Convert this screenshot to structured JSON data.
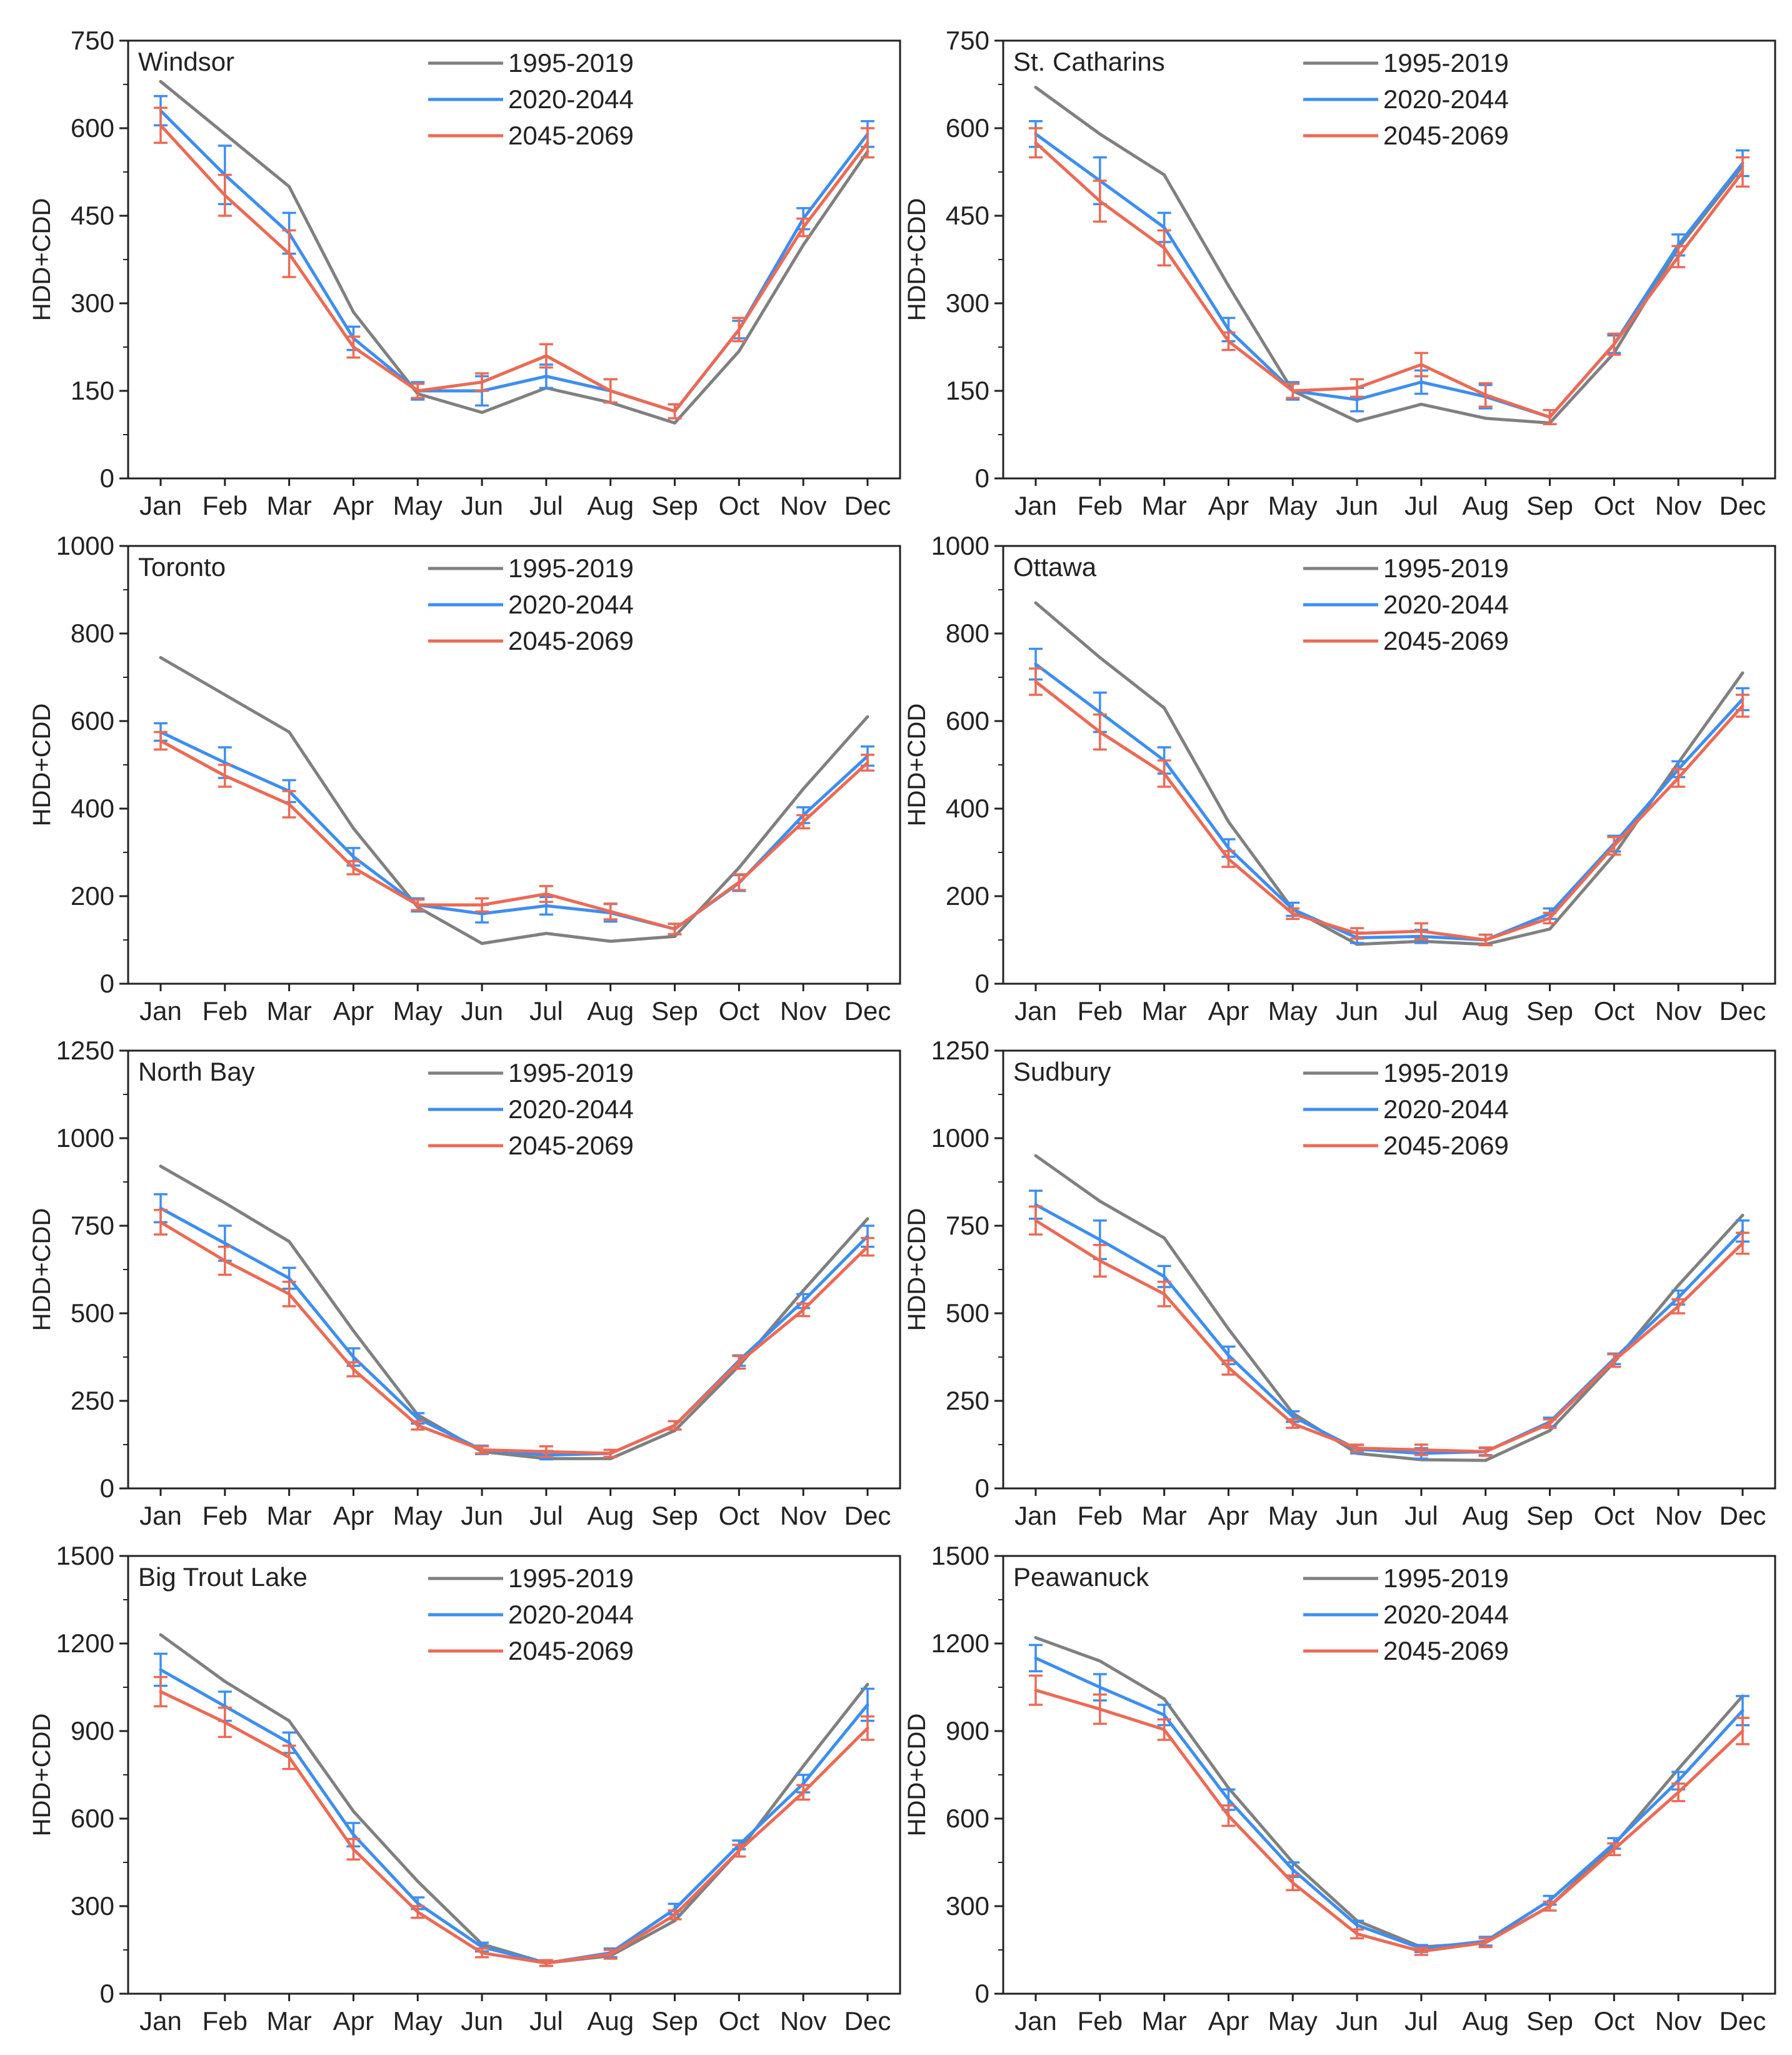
{
  "colors": {
    "series_1995_2019": "#808080",
    "series_2020_2044": "#3d8ef0",
    "series_2045_2069": "#ec6a55",
    "frame": "#222222"
  },
  "chart_data": [
    {
      "type": "line",
      "title": "Windsor",
      "ylabel": "HDD+CDD",
      "x": [
        "Jan",
        "Feb",
        "Mar",
        "Apr",
        "May",
        "Jun",
        "Jul",
        "Aug",
        "Sep",
        "Oct",
        "Nov",
        "Dec"
      ],
      "yticks": [
        0,
        150,
        300,
        450,
        600,
        750
      ],
      "ylim": [
        0,
        750
      ],
      "legend": "top-center",
      "series": [
        {
          "name": "1995-2019",
          "values": [
            680,
            590,
            500,
            285,
            145,
            113,
            155,
            130,
            95,
            218,
            400,
            560
          ]
        },
        {
          "name": "2020-2044",
          "values": [
            630,
            520,
            420,
            240,
            150,
            150,
            175,
            150,
            115,
            255,
            445,
            590
          ],
          "err": [
            25,
            50,
            35,
            20,
            15,
            25,
            20,
            20,
            12,
            15,
            18,
            22
          ]
        },
        {
          "name": "2045-2069",
          "values": [
            605,
            485,
            385,
            225,
            150,
            165,
            210,
            150,
            115,
            255,
            430,
            575
          ],
          "err": [
            30,
            35,
            40,
            18,
            12,
            15,
            20,
            20,
            12,
            20,
            15,
            25
          ]
        }
      ]
    },
    {
      "type": "line",
      "title": "St. Catharins",
      "ylabel": "HDD+CDD",
      "x": [
        "Jan",
        "Feb",
        "Mar",
        "Apr",
        "May",
        "Jun",
        "Jul",
        "Aug",
        "Sep",
        "Oct",
        "Nov",
        "Dec"
      ],
      "yticks": [
        0,
        150,
        300,
        450,
        600,
        750
      ],
      "ylim": [
        0,
        750
      ],
      "legend": "top-center",
      "series": [
        {
          "name": "1995-2019",
          "values": [
            670,
            590,
            520,
            330,
            150,
            98,
            127,
            103,
            95,
            215,
            395,
            535
          ]
        },
        {
          "name": "2020-2044",
          "values": [
            590,
            510,
            430,
            255,
            150,
            135,
            165,
            140,
            105,
            230,
            400,
            540
          ],
          "err": [
            22,
            40,
            25,
            20,
            15,
            20,
            20,
            20,
            12,
            15,
            18,
            22
          ]
        },
        {
          "name": "2045-2069",
          "values": [
            575,
            475,
            395,
            235,
            150,
            155,
            195,
            143,
            105,
            230,
            380,
            525
          ],
          "err": [
            25,
            35,
            30,
            15,
            12,
            15,
            20,
            20,
            12,
            18,
            18,
            25
          ]
        }
      ]
    },
    {
      "type": "line",
      "title": "Toronto",
      "ylabel": "HDD+CDD",
      "x": [
        "Jan",
        "Feb",
        "Mar",
        "Apr",
        "May",
        "Jun",
        "Jul",
        "Aug",
        "Sep",
        "Oct",
        "Nov",
        "Dec"
      ],
      "yticks": [
        0,
        200,
        400,
        600,
        800,
        1000
      ],
      "ylim": [
        0,
        1000
      ],
      "legend": "top-center",
      "series": [
        {
          "name": "1995-2019",
          "values": [
            745,
            660,
            575,
            355,
            175,
            92,
            115,
            97,
            108,
            265,
            445,
            610
          ]
        },
        {
          "name": "2020-2044",
          "values": [
            575,
            505,
            440,
            290,
            180,
            160,
            178,
            162,
            125,
            230,
            385,
            520
          ],
          "err": [
            20,
            35,
            25,
            20,
            15,
            20,
            20,
            20,
            12,
            18,
            18,
            22
          ]
        },
        {
          "name": "2045-2069",
          "values": [
            555,
            475,
            410,
            265,
            180,
            180,
            205,
            165,
            125,
            232,
            370,
            505
          ],
          "err": [
            20,
            25,
            30,
            15,
            12,
            15,
            18,
            18,
            12,
            18,
            15,
            18
          ]
        }
      ]
    },
    {
      "type": "line",
      "title": "Ottawa",
      "ylabel": "HDD+CDD",
      "x": [
        "Jan",
        "Feb",
        "Mar",
        "Apr",
        "May",
        "Jun",
        "Jul",
        "Aug",
        "Sep",
        "Oct",
        "Nov",
        "Dec"
      ],
      "yticks": [
        0,
        200,
        400,
        600,
        800,
        1000
      ],
      "ylim": [
        0,
        1000
      ],
      "legend": "top-center",
      "series": [
        {
          "name": "1995-2019",
          "values": [
            870,
            745,
            630,
            370,
            170,
            90,
            97,
            90,
            125,
            295,
            505,
            710
          ]
        },
        {
          "name": "2020-2044",
          "values": [
            730,
            620,
            510,
            310,
            170,
            105,
            108,
            100,
            160,
            320,
            490,
            650
          ],
          "err": [
            35,
            45,
            30,
            20,
            15,
            12,
            15,
            12,
            12,
            18,
            18,
            25
          ]
        },
        {
          "name": "2045-2069",
          "values": [
            690,
            575,
            480,
            285,
            160,
            115,
            120,
            100,
            150,
            315,
            470,
            635
          ],
          "err": [
            30,
            40,
            30,
            18,
            12,
            12,
            18,
            12,
            12,
            20,
            20,
            25
          ]
        }
      ]
    },
    {
      "type": "line",
      "title": "North Bay",
      "ylabel": "HDD+CDD",
      "x": [
        "Jan",
        "Feb",
        "Mar",
        "Apr",
        "May",
        "Jun",
        "Jul",
        "Aug",
        "Sep",
        "Oct",
        "Nov",
        "Dec"
      ],
      "yticks": [
        0,
        250,
        500,
        750,
        1000,
        1250
      ],
      "ylim": [
        0,
        1250
      ],
      "legend": "top-center",
      "series": [
        {
          "name": "1995-2019",
          "values": [
            920,
            815,
            705,
            450,
            210,
            105,
            85,
            85,
            165,
            350,
            565,
            770
          ]
        },
        {
          "name": "2020-2044",
          "values": [
            800,
            700,
            600,
            375,
            200,
            110,
            95,
            100,
            180,
            365,
            535,
            720
          ],
          "err": [
            40,
            50,
            30,
            25,
            15,
            12,
            12,
            10,
            12,
            15,
            20,
            30
          ]
        },
        {
          "name": "2045-2069",
          "values": [
            760,
            650,
            555,
            340,
            180,
            110,
            105,
            100,
            180,
            360,
            510,
            690
          ],
          "err": [
            35,
            40,
            35,
            20,
            12,
            10,
            15,
            10,
            12,
            18,
            18,
            25
          ]
        }
      ]
    },
    {
      "type": "line",
      "title": "Sudbury",
      "ylabel": "HDD+CDD",
      "x": [
        "Jan",
        "Feb",
        "Mar",
        "Apr",
        "May",
        "Jun",
        "Jul",
        "Aug",
        "Sep",
        "Oct",
        "Nov",
        "Dec"
      ],
      "yticks": [
        0,
        250,
        500,
        750,
        1000,
        1250
      ],
      "ylim": [
        0,
        1250
      ],
      "legend": "top-center",
      "series": [
        {
          "name": "1995-2019",
          "values": [
            950,
            820,
            715,
            455,
            215,
            100,
            82,
            80,
            165,
            360,
            580,
            780
          ]
        },
        {
          "name": "2020-2044",
          "values": [
            810,
            710,
            605,
            380,
            205,
            112,
            100,
            105,
            190,
            370,
            545,
            735
          ],
          "err": [
            40,
            55,
            30,
            25,
            15,
            12,
            15,
            10,
            12,
            15,
            20,
            30
          ]
        },
        {
          "name": "2045-2069",
          "values": [
            765,
            650,
            555,
            345,
            185,
            115,
            110,
            105,
            185,
            365,
            520,
            700
          ],
          "err": [
            40,
            45,
            35,
            20,
            12,
            10,
            15,
            12,
            12,
            18,
            20,
            30
          ]
        }
      ]
    },
    {
      "type": "line",
      "title": "Big Trout Lake",
      "ylabel": "HDD+CDD",
      "x": [
        "Jan",
        "Feb",
        "Mar",
        "Apr",
        "May",
        "Jun",
        "Jul",
        "Aug",
        "Sep",
        "Oct",
        "Nov",
        "Dec"
      ],
      "yticks": [
        0,
        300,
        600,
        900,
        1200,
        1500
      ],
      "ylim": [
        0,
        1500
      ],
      "legend": "top-center",
      "series": [
        {
          "name": "1995-2019",
          "values": [
            1230,
            1070,
            935,
            625,
            385,
            170,
            105,
            130,
            250,
            490,
            780,
            1060
          ]
        },
        {
          "name": "2020-2044",
          "values": [
            1110,
            985,
            860,
            545,
            310,
            160,
            105,
            140,
            290,
            510,
            720,
            990
          ],
          "err": [
            55,
            50,
            35,
            40,
            20,
            15,
            10,
            15,
            18,
            15,
            30,
            55
          ]
        },
        {
          "name": "2045-2069",
          "values": [
            1035,
            930,
            810,
            495,
            280,
            140,
            105,
            135,
            270,
            490,
            690,
            910
          ],
          "err": [
            50,
            50,
            40,
            35,
            20,
            15,
            10,
            15,
            15,
            20,
            25,
            40
          ]
        }
      ]
    },
    {
      "type": "line",
      "title": "Peawanuck",
      "ylabel": "HDD+CDD",
      "x": [
        "Jan",
        "Feb",
        "Mar",
        "Apr",
        "May",
        "Jun",
        "Jul",
        "Aug",
        "Sep",
        "Oct",
        "Nov",
        "Dec"
      ],
      "yticks": [
        0,
        300,
        600,
        900,
        1200,
        1500
      ],
      "ylim": [
        0,
        1500
      ],
      "legend": "top-center",
      "series": [
        {
          "name": "1995-2019",
          "values": [
            1220,
            1140,
            1010,
            705,
            450,
            250,
            160,
            175,
            300,
            510,
            770,
            1020
          ]
        },
        {
          "name": "2020-2044",
          "values": [
            1150,
            1050,
            955,
            665,
            425,
            235,
            155,
            180,
            320,
            515,
            730,
            970
          ],
          "err": [
            45,
            45,
            35,
            35,
            25,
            15,
            12,
            15,
            15,
            18,
            30,
            50
          ]
        },
        {
          "name": "2045-2069",
          "values": [
            1040,
            975,
            905,
            610,
            380,
            205,
            145,
            175,
            300,
            495,
            690,
            900
          ],
          "err": [
            50,
            50,
            35,
            35,
            25,
            15,
            12,
            15,
            15,
            20,
            30,
            45
          ]
        }
      ]
    }
  ]
}
